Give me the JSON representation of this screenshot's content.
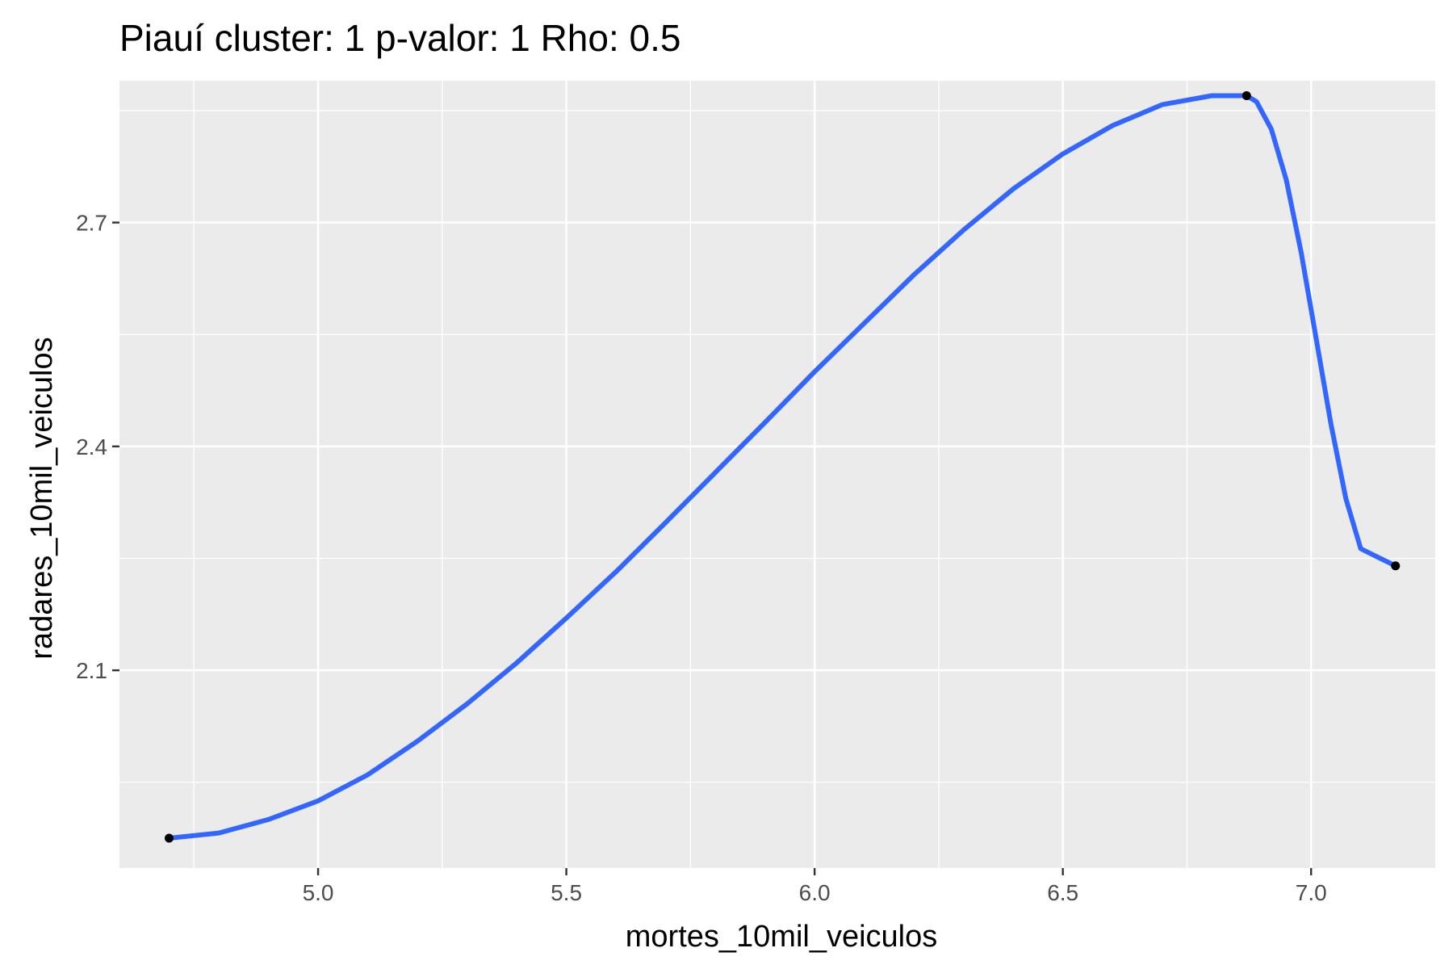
{
  "chart_data": {
    "type": "line",
    "title": "Piauí cluster: 1 p-valor: 1 Rho: 0.5",
    "xlabel": "mortes_10mil_veiculos",
    "ylabel": "radares_10mil_veiculos",
    "xlim": [
      4.6,
      7.25
    ],
    "ylim": [
      1.835,
      2.89
    ],
    "x_ticks": [
      5.0,
      5.5,
      6.0,
      6.5,
      7.0
    ],
    "x_tick_labels": [
      "5.0",
      "5.5",
      "6.0",
      "6.5",
      "7.0"
    ],
    "y_ticks": [
      2.1,
      2.4,
      2.7
    ],
    "y_tick_labels": [
      "2.1",
      "2.4",
      "2.7"
    ],
    "grid": true,
    "legend": "none",
    "colors": {
      "panel": "#ebebeb",
      "grid": "#ffffff",
      "line": "#3366ff",
      "points": "#000000"
    },
    "points": [
      {
        "x": 4.7,
        "y": 1.875
      },
      {
        "x": 6.87,
        "y": 2.87
      },
      {
        "x": 7.17,
        "y": 2.24
      }
    ],
    "series": [
      {
        "x": [
          4.7,
          4.8,
          4.9,
          5.0,
          5.1,
          5.2,
          5.3,
          5.4,
          5.5,
          5.6,
          5.7,
          5.8,
          5.9,
          6.0,
          6.1,
          6.2,
          6.3,
          6.4,
          6.5,
          6.6,
          6.7,
          6.8,
          6.87,
          6.89,
          6.92,
          6.95,
          6.98,
          7.01,
          7.04,
          7.07,
          7.1,
          7.13,
          7.17
        ],
        "y": [
          1.875,
          1.882,
          1.9,
          1.925,
          1.96,
          2.005,
          2.055,
          2.11,
          2.17,
          2.232,
          2.298,
          2.365,
          2.432,
          2.5,
          2.565,
          2.63,
          2.69,
          2.745,
          2.792,
          2.83,
          2.858,
          2.87,
          2.87,
          2.862,
          2.825,
          2.757,
          2.66,
          2.545,
          2.43,
          2.33,
          2.263,
          2.253,
          2.24
        ]
      }
    ]
  }
}
